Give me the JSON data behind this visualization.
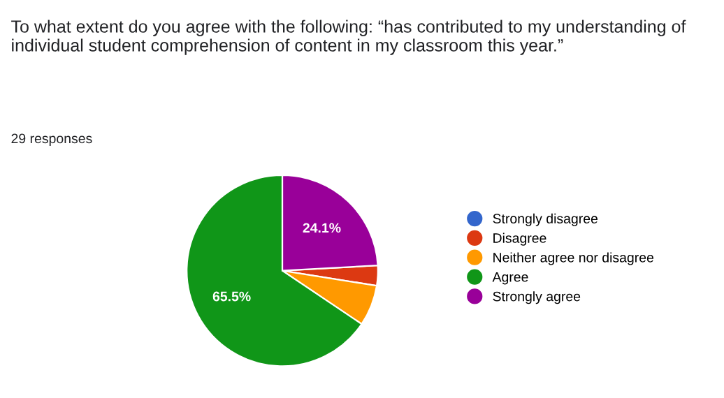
{
  "chart_data": {
    "type": "pie",
    "title": "To what extent do you agree with the following: “has contributed to my understanding of individual student comprehension of content in my classroom this year.”",
    "subtitle": "29 responses",
    "categories": [
      "Strongly disagree",
      "Disagree",
      "Neither agree nor disagree",
      "Agree",
      "Strongly agree"
    ],
    "values": [
      0,
      3.4,
      6.9,
      65.5,
      24.1
    ],
    "value_labels": [
      null,
      null,
      null,
      "65.5%",
      "24.1%"
    ],
    "colors": [
      "#3366cc",
      "#dc3912",
      "#ff9900",
      "#109618",
      "#990099"
    ],
    "legend": "right"
  }
}
